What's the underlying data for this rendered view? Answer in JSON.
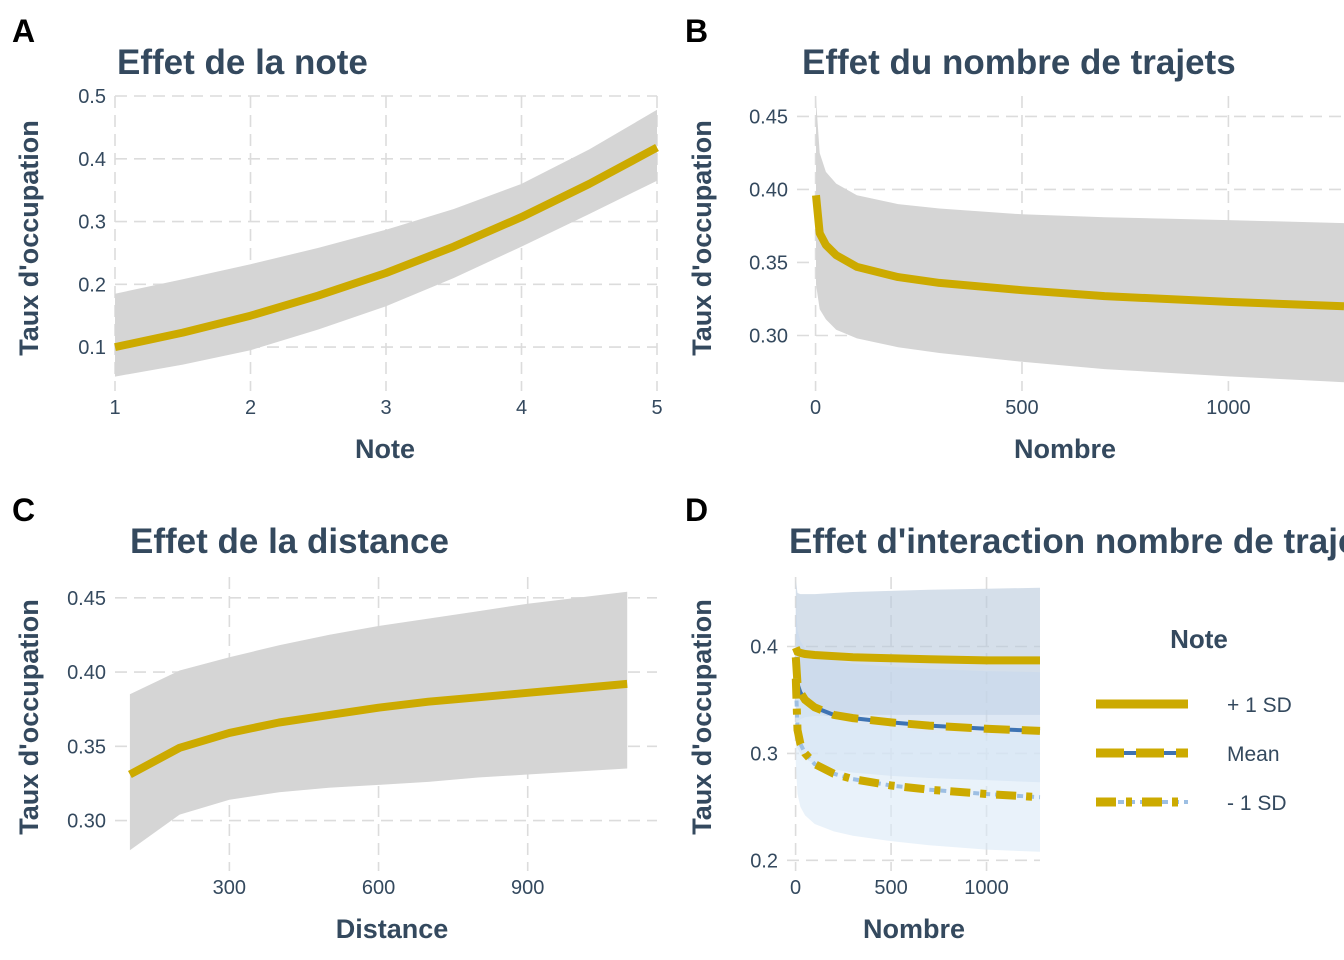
{
  "colors": {
    "line": "#ccaa00",
    "ribbon": "#d5d5d5",
    "text": "#34495e",
    "grid": "#dcdcdc",
    "plus1sd_ribbon": "#b9c9dc",
    "mean_ribbon": "#c8d9ec",
    "minus1sd_ribbon": "#dbe9f7",
    "mean_dash": "#3e73b3",
    "minus1sd_dash": "#9dbfe3"
  },
  "chart_data": [
    {
      "panel": "A",
      "type": "line",
      "title": "Effet de la note",
      "xlabel": "Note",
      "ylabel": "Taux d'occupation",
      "xlim": [
        1,
        5
      ],
      "ylim": [
        0.03,
        0.5
      ],
      "xticks": [
        1,
        2,
        3,
        4,
        5
      ],
      "xtick_labels": [
        "1",
        "2",
        "3",
        "4",
        "5"
      ],
      "yticks": [
        0.1,
        0.2,
        0.3,
        0.4,
        0.5
      ],
      "ytick_labels": [
        "0.1",
        "0.2",
        "0.3",
        "0.4",
        "0.5"
      ],
      "grid": true,
      "x": [
        1,
        1.5,
        2,
        2.5,
        3,
        3.5,
        4,
        4.5,
        5
      ],
      "y": [
        0.1,
        0.123,
        0.15,
        0.182,
        0.218,
        0.26,
        0.307,
        0.36,
        0.418
      ],
      "lower": [
        0.053,
        0.072,
        0.095,
        0.128,
        0.165,
        0.21,
        0.26,
        0.312,
        0.365
      ],
      "upper": [
        0.185,
        0.208,
        0.232,
        0.258,
        0.287,
        0.32,
        0.36,
        0.415,
        0.478
      ]
    },
    {
      "panel": "B",
      "type": "line",
      "title": "Effet du nombre de trajets",
      "xlabel": "Nombre",
      "ylabel": "Taux d'occupation",
      "xlim": [
        -45,
        1280
      ],
      "ylim": [
        0.262,
        0.464
      ],
      "xticks": [
        0,
        500,
        1000
      ],
      "xtick_labels": [
        "0",
        "500",
        "1000"
      ],
      "yticks": [
        0.3,
        0.35,
        0.4,
        0.45
      ],
      "ytick_labels": [
        "0.30",
        "0.35",
        "0.40",
        "0.45"
      ],
      "grid": true,
      "x": [
        1,
        10,
        25,
        50,
        100,
        200,
        300,
        500,
        700,
        1000,
        1280
      ],
      "y": [
        0.396,
        0.37,
        0.362,
        0.355,
        0.347,
        0.34,
        0.336,
        0.331,
        0.327,
        0.323,
        0.32
      ],
      "lower": [
        0.335,
        0.318,
        0.311,
        0.304,
        0.298,
        0.292,
        0.288,
        0.282,
        0.277,
        0.272,
        0.268
      ],
      "upper": [
        0.462,
        0.425,
        0.412,
        0.404,
        0.396,
        0.39,
        0.387,
        0.383,
        0.381,
        0.379,
        0.377
      ]
    },
    {
      "panel": "C",
      "type": "line",
      "title": "Effet de la distance",
      "xlabel": "Distance",
      "ylabel": "Taux d'occupation",
      "xlim": [
        70,
        1160
      ],
      "ylim": [
        0.266,
        0.464
      ],
      "xticks": [
        300,
        600,
        900
      ],
      "xtick_labels": [
        "300",
        "600",
        "900"
      ],
      "yticks": [
        0.3,
        0.35,
        0.4,
        0.45
      ],
      "ytick_labels": [
        "0.30",
        "0.35",
        "0.40",
        "0.45"
      ],
      "grid": true,
      "x": [
        100,
        200,
        300,
        400,
        500,
        600,
        700,
        800,
        900,
        1000,
        1100
      ],
      "y": [
        0.331,
        0.349,
        0.359,
        0.366,
        0.371,
        0.376,
        0.38,
        0.383,
        0.386,
        0.389,
        0.392
      ],
      "lower": [
        0.28,
        0.304,
        0.314,
        0.319,
        0.322,
        0.324,
        0.326,
        0.329,
        0.331,
        0.333,
        0.335
      ],
      "upper": [
        0.385,
        0.401,
        0.41,
        0.418,
        0.425,
        0.431,
        0.436,
        0.441,
        0.446,
        0.45,
        0.454
      ]
    },
    {
      "panel": "D",
      "type": "line",
      "title": "Effet d'interaction nombre de trajets",
      "xlabel": "Nombre",
      "ylabel": "Taux d'occupation",
      "xlim": [
        -45,
        1280
      ],
      "ylim": [
        0.19,
        0.465
      ],
      "xticks": [
        0,
        500,
        1000
      ],
      "xtick_labels": [
        "0",
        "500",
        "1000"
      ],
      "yticks": [
        0.2,
        0.3,
        0.4
      ],
      "ytick_labels": [
        "0.2",
        "0.3",
        "0.4"
      ],
      "grid": true,
      "legend": {
        "title": "Note",
        "position": "right"
      },
      "x": [
        1,
        10,
        25,
        50,
        100,
        200,
        300,
        500,
        700,
        1000,
        1280
      ],
      "series": [
        {
          "name": "+ 1 SD",
          "style": "solid",
          "y": [
            0.399,
            0.395,
            0.394,
            0.393,
            0.392,
            0.391,
            0.39,
            0.389,
            0.388,
            0.387,
            0.387
          ],
          "lower": [
            0.325,
            0.33,
            0.332,
            0.334,
            0.335,
            0.335,
            0.336,
            0.336,
            0.336,
            0.336,
            0.336
          ],
          "upper": [
            0.462,
            0.45,
            0.449,
            0.449,
            0.449,
            0.45,
            0.451,
            0.452,
            0.453,
            0.454,
            0.455
          ]
        },
        {
          "name": "Mean",
          "style": "dashed",
          "y": [
            0.39,
            0.365,
            0.357,
            0.35,
            0.343,
            0.336,
            0.333,
            0.329,
            0.326,
            0.323,
            0.321
          ],
          "lower": [
            0.31,
            0.305,
            0.3,
            0.295,
            0.29,
            0.285,
            0.282,
            0.279,
            0.277,
            0.275,
            0.273
          ],
          "upper": [
            0.44,
            0.415,
            0.405,
            0.398,
            0.392,
            0.387,
            0.384,
            0.381,
            0.379,
            0.377,
            0.376
          ]
        },
        {
          "name": "- 1 SD",
          "style": "dotdash",
          "y": [
            0.37,
            0.322,
            0.309,
            0.3,
            0.29,
            0.281,
            0.276,
            0.27,
            0.266,
            0.262,
            0.259
          ],
          "lower": [
            0.29,
            0.262,
            0.25,
            0.242,
            0.234,
            0.227,
            0.223,
            0.218,
            0.214,
            0.21,
            0.208
          ],
          "upper": [
            0.415,
            0.375,
            0.36,
            0.35,
            0.34,
            0.332,
            0.328,
            0.323,
            0.32,
            0.317,
            0.315
          ]
        }
      ]
    }
  ]
}
